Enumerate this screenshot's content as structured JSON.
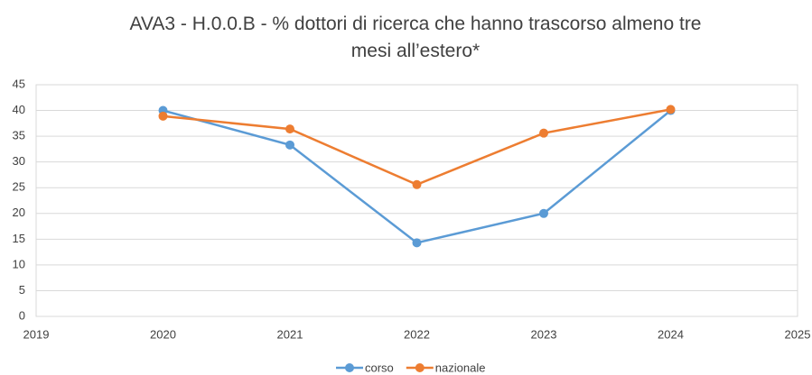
{
  "chart_data": {
    "type": "line",
    "title": "AVA3 - H.0.0.B - % dottori di ricerca che hanno trascorso almeno tre mesi all’estero*",
    "x": [
      2020,
      2021,
      2022,
      2023,
      2024
    ],
    "series": [
      {
        "name": "corso",
        "color": "#5b9bd5",
        "values": [
          40,
          33.3,
          14.3,
          20,
          40
        ]
      },
      {
        "name": "nazionale",
        "color": "#ed7d31",
        "values": [
          38.9,
          36.4,
          25.6,
          35.6,
          40.2
        ]
      }
    ],
    "xlim": [
      2019,
      2025
    ],
    "xticks": [
      2019,
      2020,
      2021,
      2022,
      2023,
      2024,
      2025
    ],
    "ylim": [
      0,
      45
    ],
    "yticks": [
      0,
      5,
      10,
      15,
      20,
      25,
      30,
      35,
      40,
      45
    ],
    "grid": true,
    "legend": "bottom"
  }
}
